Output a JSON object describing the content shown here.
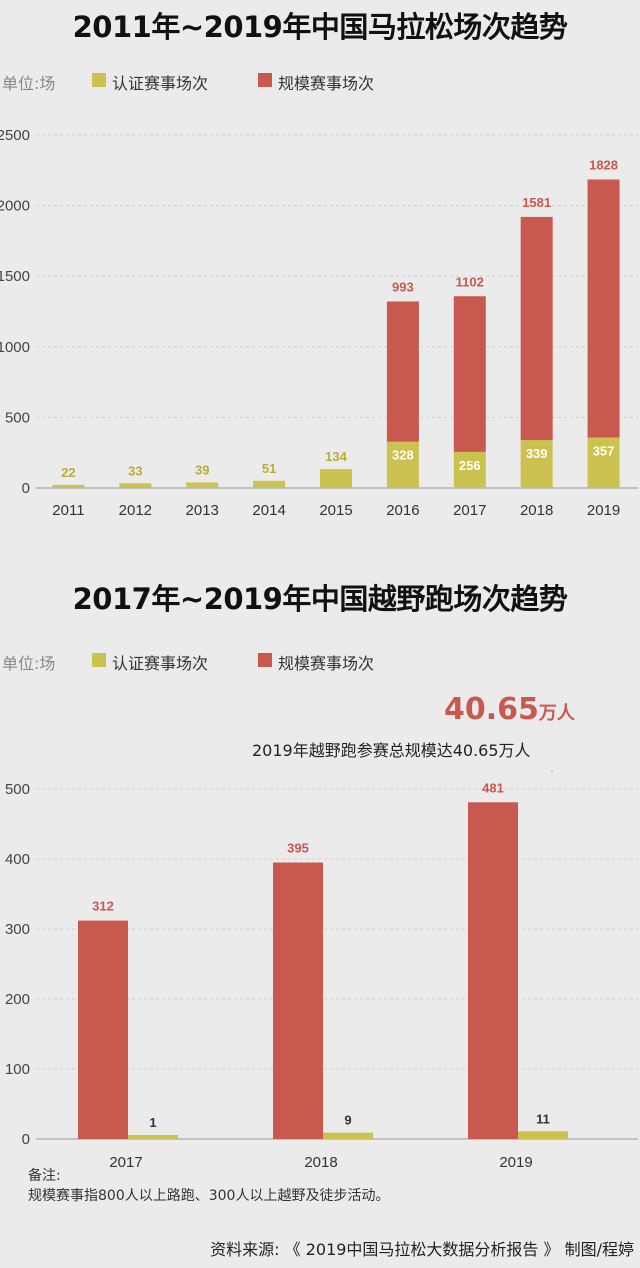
{
  "colors": {
    "certified": "#ccc24f",
    "scale": "#c9584f"
  },
  "chart_data": [
    {
      "type": "bar",
      "title": "2011年~2019年中国马拉松场次趋势",
      "unit_label": "单位:场",
      "legend": [
        "认证赛事场次",
        "规模赛事场次"
      ],
      "stacked": true,
      "categories": [
        "2011",
        "2012",
        "2013",
        "2014",
        "2015",
        "2016",
        "2017",
        "2018",
        "2019"
      ],
      "series": [
        {
          "name": "认证赛事场次",
          "values": [
            22,
            33,
            39,
            51,
            134,
            328,
            256,
            339,
            357
          ]
        },
        {
          "name": "规模赛事场次",
          "values": [
            null,
            null,
            null,
            null,
            null,
            993,
            1102,
            1581,
            1828
          ]
        }
      ],
      "yticks": [
        "0",
        "500",
        "1000",
        "1500",
        "2000",
        "2500"
      ],
      "ylim": [
        0,
        2500
      ]
    },
    {
      "type": "bar",
      "title": "2017年~2019年中国越野跑场次趋势",
      "unit_label": "单位:场",
      "legend": [
        "认证赛事场次",
        "规模赛事场次"
      ],
      "stacked": false,
      "categories": [
        "2017",
        "2018",
        "2019"
      ],
      "series": [
        {
          "name": "规模赛事场次",
          "values": [
            312,
            395,
            481
          ]
        },
        {
          "name": "认证赛事场次",
          "values": [
            1,
            9,
            11
          ]
        }
      ],
      "yticks": [
        "0",
        "100",
        "200",
        "300",
        "400",
        "500"
      ],
      "ylim": [
        0,
        500
      ]
    }
  ],
  "annotation": {
    "value": "40.65",
    "unit": "万人",
    "text": "2019年越野跑参赛总规模达40.65万人"
  },
  "note": {
    "heading": "备注:",
    "text": "规模赛事指800人以上路跑、300人以上越野及徒步活动。"
  },
  "source": "资料来源: 《 2019中国马拉松大数据分析报告 》   制图/程婷"
}
